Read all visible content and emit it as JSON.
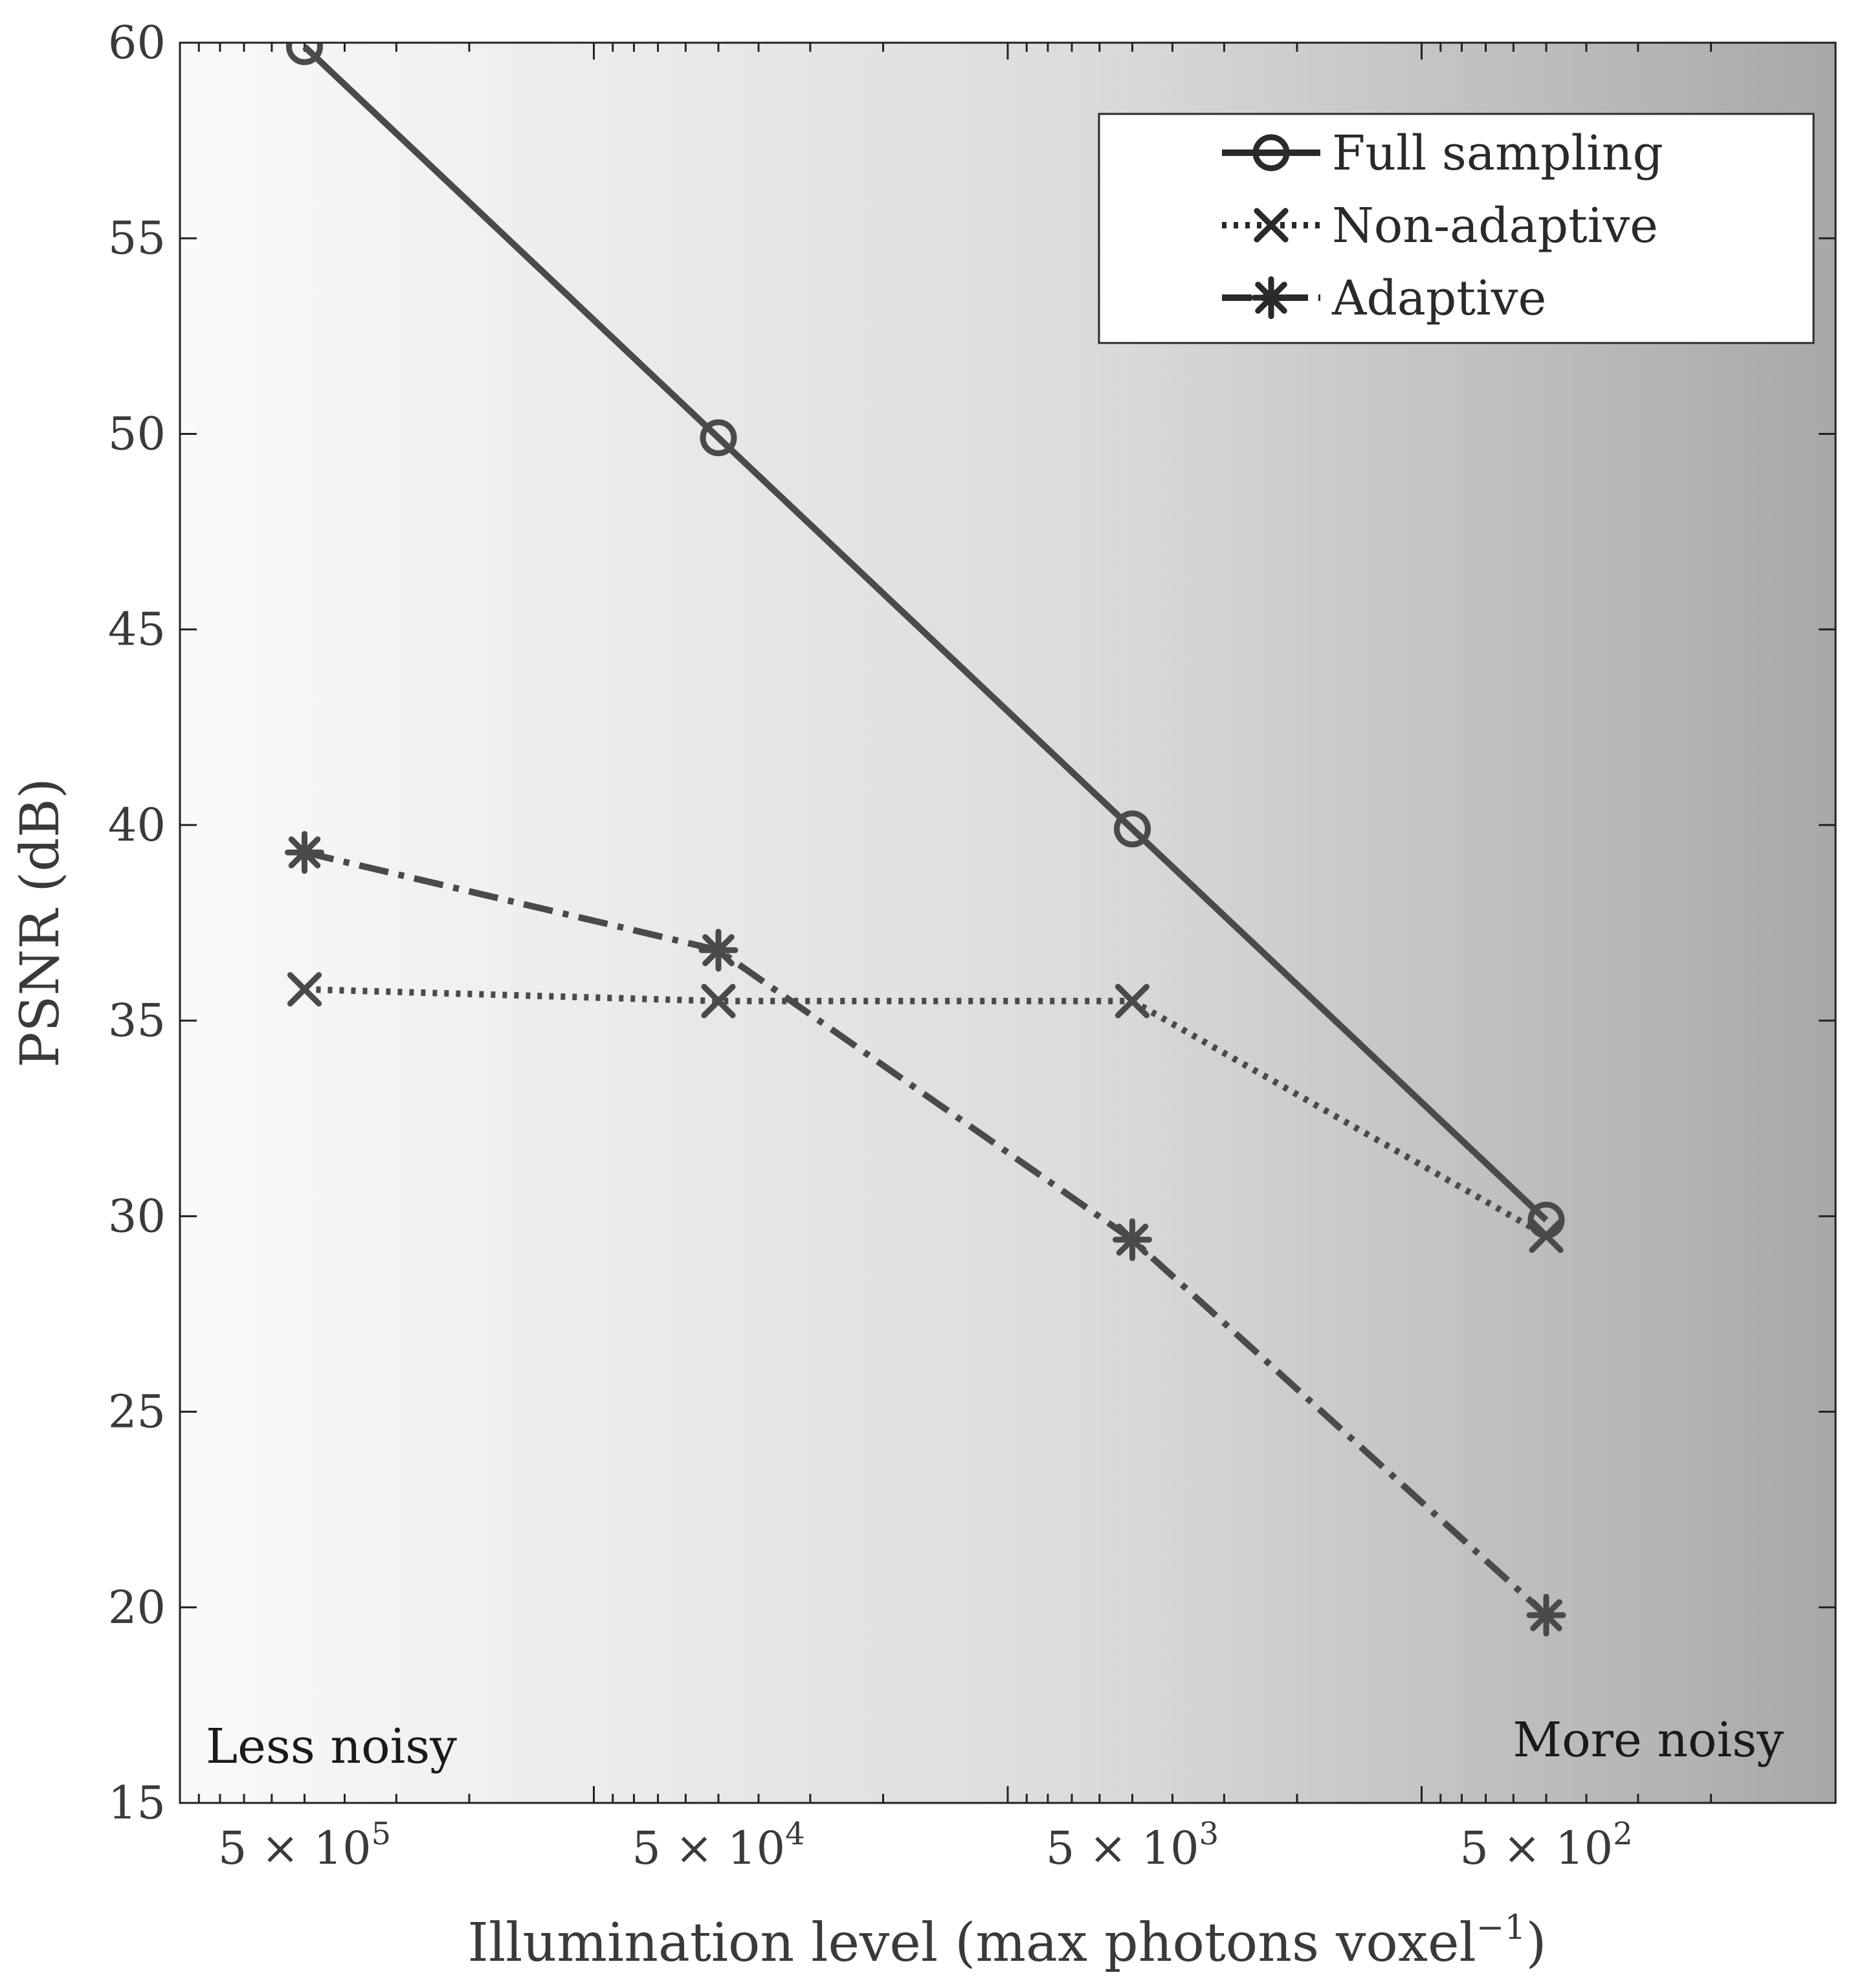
{
  "chart_data": {
    "type": "line",
    "title": "",
    "xlabel": "Illumination level (max photons voxel",
    "xlabel_superscript": "−1",
    "xlabel_close": ")",
    "ylabel": "PSNR (dB)",
    "x_scale": "log, reversed",
    "x": [
      500000,
      50000,
      5000,
      500
    ],
    "xticks": [
      {
        "value": 500000,
        "base": "5 × 10",
        "exp": "5"
      },
      {
        "value": 50000,
        "base": "5 × 10",
        "exp": "4"
      },
      {
        "value": 5000,
        "base": "5 × 10",
        "exp": "3"
      },
      {
        "value": 500,
        "base": "5 × 10",
        "exp": "2"
      }
    ],
    "xlim": [
      1000000,
      100
    ],
    "ylim": [
      15,
      60
    ],
    "yticks": [
      "15",
      "20",
      "25",
      "30",
      "35",
      "40",
      "45",
      "50",
      "55",
      "60"
    ],
    "series": [
      {
        "name": "Full sampling",
        "values": [
          59.9,
          49.9,
          39.9,
          29.9
        ],
        "linestyle": "solid",
        "marker": "circle",
        "color": "#4a4a4a"
      },
      {
        "name": "Non-adaptive",
        "values": [
          35.8,
          35.5,
          35.5,
          29.5
        ],
        "linestyle": "dotted",
        "marker": "x",
        "color": "#4a4a4a"
      },
      {
        "name": "Adaptive",
        "values": [
          39.3,
          36.8,
          29.4,
          19.8
        ],
        "linestyle": "dashdot",
        "marker": "asterisk",
        "color": "#4a4a4a"
      }
    ],
    "legend_position": "top-right",
    "annotations": [
      "Less noisy",
      "More noisy"
    ],
    "background": "gradient light-to-dark grey left to right",
    "colors": {
      "bg_left": "#fafafa",
      "bg_mid": "#d6d4d4",
      "bg_right": "#aca9a9",
      "line": "#4a4a4a",
      "axis": "#222222"
    }
  }
}
